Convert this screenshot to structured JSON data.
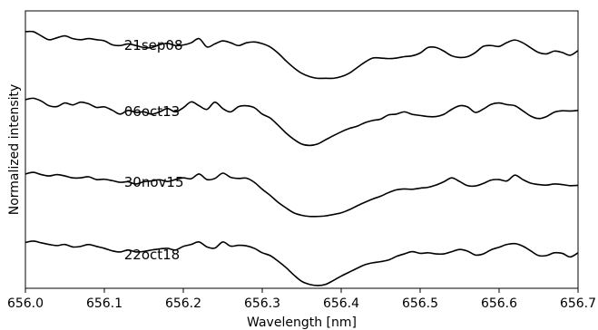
{
  "chart_data": {
    "type": "line",
    "xlabel": "Wavelength [nm]",
    "ylabel": "Normalized intensity",
    "xlim": [
      656.0,
      656.7
    ],
    "x_ticks": [
      "656.0",
      "656.1",
      "656.2",
      "656.3",
      "656.4",
      "656.5",
      "656.6",
      "656.7"
    ],
    "y_ticks_shown": false,
    "ylim": [
      0,
      1
    ],
    "grid": false,
    "legend": "none",
    "line_color": "#000000",
    "series": [
      {
        "label": "21sep08",
        "label_x": 656.125,
        "label_y": 0.859,
        "points": [
          [
            656.0,
            0.925
          ],
          [
            656.01,
            0.925
          ],
          [
            656.02,
            0.91
          ],
          [
            656.03,
            0.896
          ],
          [
            656.04,
            0.903
          ],
          [
            656.05,
            0.91
          ],
          [
            656.06,
            0.9
          ],
          [
            656.07,
            0.896
          ],
          [
            656.08,
            0.9
          ],
          [
            656.09,
            0.896
          ],
          [
            656.1,
            0.892
          ],
          [
            656.11,
            0.878
          ],
          [
            656.12,
            0.875
          ],
          [
            656.13,
            0.881
          ],
          [
            656.14,
            0.875
          ],
          [
            656.15,
            0.868
          ],
          [
            656.16,
            0.868
          ],
          [
            656.17,
            0.878
          ],
          [
            656.18,
            0.883
          ],
          [
            656.19,
            0.875
          ],
          [
            656.2,
            0.877
          ],
          [
            656.21,
            0.885
          ],
          [
            656.22,
            0.9
          ],
          [
            656.23,
            0.87
          ],
          [
            656.24,
            0.881
          ],
          [
            656.25,
            0.892
          ],
          [
            656.26,
            0.885
          ],
          [
            656.27,
            0.875
          ],
          [
            656.28,
            0.885
          ],
          [
            656.29,
            0.888
          ],
          [
            656.3,
            0.882
          ],
          [
            656.31,
            0.87
          ],
          [
            656.32,
            0.848
          ],
          [
            656.33,
            0.82
          ],
          [
            656.34,
            0.795
          ],
          [
            656.35,
            0.775
          ],
          [
            656.36,
            0.763
          ],
          [
            656.37,
            0.757
          ],
          [
            656.38,
            0.757
          ],
          [
            656.39,
            0.757
          ],
          [
            656.4,
            0.763
          ],
          [
            656.41,
            0.775
          ],
          [
            656.42,
            0.795
          ],
          [
            656.43,
            0.815
          ],
          [
            656.44,
            0.83
          ],
          [
            656.45,
            0.83
          ],
          [
            656.46,
            0.828
          ],
          [
            656.47,
            0.83
          ],
          [
            656.48,
            0.835
          ],
          [
            656.49,
            0.838
          ],
          [
            656.5,
            0.848
          ],
          [
            656.51,
            0.868
          ],
          [
            656.52,
            0.868
          ],
          [
            656.53,
            0.855
          ],
          [
            656.54,
            0.838
          ],
          [
            656.55,
            0.832
          ],
          [
            656.56,
            0.835
          ],
          [
            656.57,
            0.85
          ],
          [
            656.58,
            0.872
          ],
          [
            656.59,
            0.875
          ],
          [
            656.6,
            0.872
          ],
          [
            656.61,
            0.886
          ],
          [
            656.62,
            0.895
          ],
          [
            656.63,
            0.885
          ],
          [
            656.64,
            0.867
          ],
          [
            656.65,
            0.85
          ],
          [
            656.66,
            0.845
          ],
          [
            656.67,
            0.855
          ],
          [
            656.68,
            0.85
          ],
          [
            656.69,
            0.84
          ],
          [
            656.7,
            0.857
          ]
        ]
      },
      {
        "label": "06oct13",
        "label_x": 656.125,
        "label_y": 0.621,
        "points": [
          [
            656.0,
            0.68
          ],
          [
            656.01,
            0.685
          ],
          [
            656.02,
            0.675
          ],
          [
            656.03,
            0.658
          ],
          [
            656.04,
            0.655
          ],
          [
            656.05,
            0.668
          ],
          [
            656.06,
            0.661
          ],
          [
            656.07,
            0.671
          ],
          [
            656.08,
            0.665
          ],
          [
            656.09,
            0.652
          ],
          [
            656.1,
            0.654
          ],
          [
            656.11,
            0.642
          ],
          [
            656.12,
            0.628
          ],
          [
            656.13,
            0.641
          ],
          [
            656.14,
            0.634
          ],
          [
            656.15,
            0.636
          ],
          [
            656.16,
            0.628
          ],
          [
            656.17,
            0.636
          ],
          [
            656.18,
            0.648
          ],
          [
            656.19,
            0.636
          ],
          [
            656.2,
            0.651
          ],
          [
            656.21,
            0.672
          ],
          [
            656.22,
            0.658
          ],
          [
            656.23,
            0.645
          ],
          [
            656.24,
            0.671
          ],
          [
            656.25,
            0.648
          ],
          [
            656.26,
            0.636
          ],
          [
            656.27,
            0.655
          ],
          [
            656.28,
            0.658
          ],
          [
            656.29,
            0.651
          ],
          [
            656.3,
            0.628
          ],
          [
            656.31,
            0.614
          ],
          [
            656.32,
            0.588
          ],
          [
            656.33,
            0.56
          ],
          [
            656.34,
            0.537
          ],
          [
            656.35,
            0.52
          ],
          [
            656.36,
            0.515
          ],
          [
            656.37,
            0.52
          ],
          [
            656.38,
            0.535
          ],
          [
            656.39,
            0.55
          ],
          [
            656.4,
            0.564
          ],
          [
            656.41,
            0.576
          ],
          [
            656.42,
            0.584
          ],
          [
            656.43,
            0.597
          ],
          [
            656.44,
            0.605
          ],
          [
            656.45,
            0.61
          ],
          [
            656.46,
            0.625
          ],
          [
            656.47,
            0.628
          ],
          [
            656.48,
            0.636
          ],
          [
            656.49,
            0.627
          ],
          [
            656.5,
            0.623
          ],
          [
            656.51,
            0.619
          ],
          [
            656.52,
            0.619
          ],
          [
            656.53,
            0.627
          ],
          [
            656.54,
            0.645
          ],
          [
            656.55,
            0.658
          ],
          [
            656.56,
            0.654
          ],
          [
            656.57,
            0.634
          ],
          [
            656.58,
            0.646
          ],
          [
            656.59,
            0.663
          ],
          [
            656.6,
            0.668
          ],
          [
            656.61,
            0.662
          ],
          [
            656.62,
            0.658
          ],
          [
            656.63,
            0.64
          ],
          [
            656.64,
            0.621
          ],
          [
            656.65,
            0.612
          ],
          [
            656.66,
            0.619
          ],
          [
            656.67,
            0.635
          ],
          [
            656.68,
            0.64
          ],
          [
            656.69,
            0.639
          ],
          [
            656.7,
            0.641
          ]
        ]
      },
      {
        "label": "30nov15",
        "label_x": 656.125,
        "label_y": 0.366,
        "points": [
          [
            656.0,
            0.412
          ],
          [
            656.01,
            0.418
          ],
          [
            656.02,
            0.41
          ],
          [
            656.03,
            0.405
          ],
          [
            656.04,
            0.41
          ],
          [
            656.05,
            0.405
          ],
          [
            656.06,
            0.398
          ],
          [
            656.07,
            0.398
          ],
          [
            656.08,
            0.402
          ],
          [
            656.09,
            0.392
          ],
          [
            656.1,
            0.393
          ],
          [
            656.11,
            0.388
          ],
          [
            656.12,
            0.382
          ],
          [
            656.13,
            0.384
          ],
          [
            656.14,
            0.376
          ],
          [
            656.15,
            0.384
          ],
          [
            656.16,
            0.387
          ],
          [
            656.17,
            0.391
          ],
          [
            656.18,
            0.385
          ],
          [
            656.19,
            0.392
          ],
          [
            656.2,
            0.398
          ],
          [
            656.21,
            0.395
          ],
          [
            656.22,
            0.412
          ],
          [
            656.23,
            0.392
          ],
          [
            656.24,
            0.396
          ],
          [
            656.25,
            0.415
          ],
          [
            656.26,
            0.4
          ],
          [
            656.27,
            0.396
          ],
          [
            656.28,
            0.397
          ],
          [
            656.29,
            0.382
          ],
          [
            656.3,
            0.357
          ],
          [
            656.31,
            0.335
          ],
          [
            656.32,
            0.31
          ],
          [
            656.33,
            0.29
          ],
          [
            656.34,
            0.272
          ],
          [
            656.35,
            0.263
          ],
          [
            656.36,
            0.259
          ],
          [
            656.37,
            0.259
          ],
          [
            656.38,
            0.261
          ],
          [
            656.39,
            0.266
          ],
          [
            656.4,
            0.272
          ],
          [
            656.41,
            0.283
          ],
          [
            656.42,
            0.297
          ],
          [
            656.43,
            0.31
          ],
          [
            656.44,
            0.322
          ],
          [
            656.45,
            0.332
          ],
          [
            656.46,
            0.345
          ],
          [
            656.47,
            0.355
          ],
          [
            656.48,
            0.358
          ],
          [
            656.49,
            0.357
          ],
          [
            656.5,
            0.361
          ],
          [
            656.51,
            0.364
          ],
          [
            656.52,
            0.372
          ],
          [
            656.53,
            0.384
          ],
          [
            656.54,
            0.398
          ],
          [
            656.55,
            0.385
          ],
          [
            656.56,
            0.37
          ],
          [
            656.57,
            0.369
          ],
          [
            656.58,
            0.378
          ],
          [
            656.59,
            0.39
          ],
          [
            656.6,
            0.392
          ],
          [
            656.61,
            0.387
          ],
          [
            656.62,
            0.408
          ],
          [
            656.63,
            0.392
          ],
          [
            656.64,
            0.379
          ],
          [
            656.65,
            0.374
          ],
          [
            656.66,
            0.372
          ],
          [
            656.67,
            0.376
          ],
          [
            656.68,
            0.374
          ],
          [
            656.69,
            0.37
          ],
          [
            656.7,
            0.371
          ]
        ]
      },
      {
        "label": "22oct18",
        "label_x": 656.125,
        "label_y": 0.104,
        "points": [
          [
            656.0,
            0.165
          ],
          [
            656.01,
            0.17
          ],
          [
            656.02,
            0.164
          ],
          [
            656.03,
            0.158
          ],
          [
            656.04,
            0.154
          ],
          [
            656.05,
            0.158
          ],
          [
            656.06,
            0.149
          ],
          [
            656.07,
            0.151
          ],
          [
            656.08,
            0.158
          ],
          [
            656.09,
            0.151
          ],
          [
            656.1,
            0.144
          ],
          [
            656.11,
            0.135
          ],
          [
            656.12,
            0.131
          ],
          [
            656.13,
            0.138
          ],
          [
            656.14,
            0.131
          ],
          [
            656.15,
            0.133
          ],
          [
            656.16,
            0.138
          ],
          [
            656.17,
            0.142
          ],
          [
            656.18,
            0.144
          ],
          [
            656.19,
            0.138
          ],
          [
            656.2,
            0.151
          ],
          [
            656.21,
            0.158
          ],
          [
            656.22,
            0.167
          ],
          [
            656.23,
            0.149
          ],
          [
            656.24,
            0.145
          ],
          [
            656.25,
            0.167
          ],
          [
            656.26,
            0.152
          ],
          [
            656.27,
            0.155
          ],
          [
            656.28,
            0.153
          ],
          [
            656.29,
            0.144
          ],
          [
            656.3,
            0.128
          ],
          [
            656.31,
            0.118
          ],
          [
            656.32,
            0.098
          ],
          [
            656.33,
            0.075
          ],
          [
            656.34,
            0.048
          ],
          [
            656.35,
            0.025
          ],
          [
            656.36,
            0.014
          ],
          [
            656.37,
            0.01
          ],
          [
            656.38,
            0.014
          ],
          [
            656.39,
            0.028
          ],
          [
            656.4,
            0.044
          ],
          [
            656.41,
            0.058
          ],
          [
            656.42,
            0.072
          ],
          [
            656.43,
            0.085
          ],
          [
            656.44,
            0.092
          ],
          [
            656.45,
            0.096
          ],
          [
            656.46,
            0.102
          ],
          [
            656.47,
            0.115
          ],
          [
            656.48,
            0.124
          ],
          [
            656.49,
            0.132
          ],
          [
            656.5,
            0.126
          ],
          [
            656.51,
            0.128
          ],
          [
            656.52,
            0.124
          ],
          [
            656.53,
            0.124
          ],
          [
            656.54,
            0.132
          ],
          [
            656.55,
            0.14
          ],
          [
            656.56,
            0.134
          ],
          [
            656.57,
            0.12
          ],
          [
            656.58,
            0.124
          ],
          [
            656.59,
            0.139
          ],
          [
            656.6,
            0.148
          ],
          [
            656.61,
            0.158
          ],
          [
            656.62,
            0.161
          ],
          [
            656.63,
            0.152
          ],
          [
            656.64,
            0.135
          ],
          [
            656.65,
            0.118
          ],
          [
            656.66,
            0.118
          ],
          [
            656.67,
            0.128
          ],
          [
            656.68,
            0.126
          ],
          [
            656.69,
            0.113
          ],
          [
            656.7,
            0.128
          ]
        ]
      }
    ]
  }
}
